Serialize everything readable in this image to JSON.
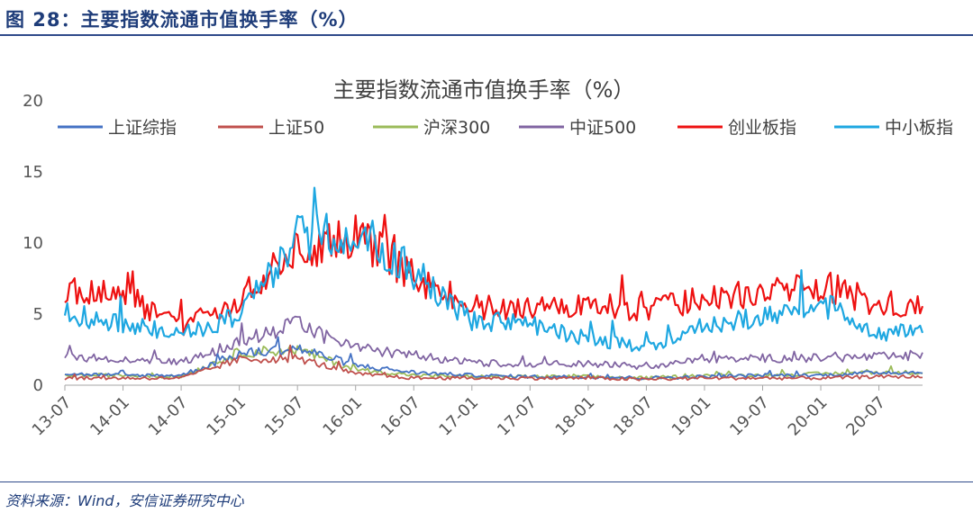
{
  "figure": {
    "title": "图 28：主要指数流通市值换手率（%）",
    "source": "资料来源：Wind，安信证券研究中心"
  },
  "chart_data": {
    "type": "line",
    "title": "主要指数流通市值换手率（%）",
    "xlabel": "",
    "ylabel": "",
    "ylim": [
      0,
      20
    ],
    "yticks": [
      "0",
      "5",
      "10",
      "15",
      "20"
    ],
    "grid": false,
    "legend_position": "top",
    "categories": [
      "13-07",
      "14-01",
      "14-07",
      "15-01",
      "15-07",
      "16-01",
      "16-07",
      "17-01",
      "17-07",
      "18-01",
      "18-07",
      "19-01",
      "19-07",
      "20-01",
      "20-07"
    ],
    "series": [
      {
        "name": "上证综指",
        "color": "#4472c4",
        "values": [
          0.8,
          0.7,
          0.7,
          2.2,
          2.6,
          1.4,
          0.9,
          0.7,
          0.6,
          0.6,
          0.5,
          0.6,
          0.7,
          0.7,
          0.9
        ]
      },
      {
        "name": "上证50",
        "color": "#c0504d",
        "values": [
          0.5,
          0.5,
          0.5,
          1.8,
          1.9,
          0.8,
          0.5,
          0.5,
          0.5,
          0.5,
          0.4,
          0.5,
          0.5,
          0.5,
          0.6
        ]
      },
      {
        "name": "沪深300",
        "color": "#9bbb59",
        "values": [
          0.7,
          0.7,
          0.6,
          2.3,
          2.5,
          1.1,
          0.7,
          0.6,
          0.6,
          0.6,
          0.5,
          0.7,
          0.7,
          0.8,
          0.9
        ]
      },
      {
        "name": "中证500",
        "color": "#8064a2",
        "values": [
          2.0,
          1.8,
          1.6,
          3.0,
          4.3,
          2.6,
          2.1,
          1.6,
          1.5,
          1.5,
          1.3,
          1.8,
          1.9,
          1.9,
          2.0
        ]
      },
      {
        "name": "创业板指",
        "color": "#ee1111",
        "values": [
          6.5,
          6.4,
          4.0,
          6.0,
          9.5,
          10.5,
          7.6,
          5.5,
          5.3,
          5.8,
          5.2,
          6.2,
          6.4,
          7.1,
          5.7
        ]
      },
      {
        "name": "中小板指",
        "color": "#1ea7e1",
        "values": [
          5.0,
          4.4,
          3.5,
          5.0,
          10.3,
          11.0,
          8.0,
          4.6,
          4.2,
          3.3,
          2.6,
          4.3,
          4.7,
          5.8,
          3.7
        ]
      }
    ]
  }
}
